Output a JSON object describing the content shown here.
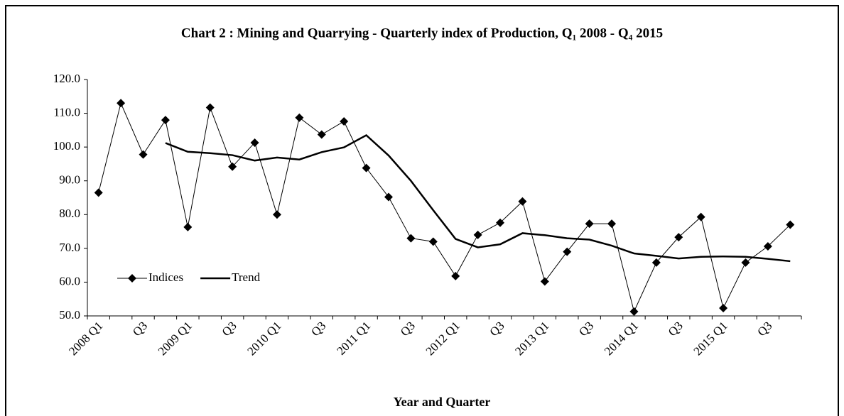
{
  "chart_data": {
    "type": "line",
    "title": "Chart 2 : Mining and Quarrying - Quarterly index of Production, Q₁ 2008 - Q₄ 2015",
    "x_label": "Year and Quarter",
    "categories": [
      "2008 Q1",
      null,
      "Q3",
      null,
      "2009 Q1",
      null,
      "Q3",
      null,
      "2010 Q1",
      null,
      "Q3",
      null,
      "2011 Q1",
      null,
      "Q3",
      null,
      "2012 Q1",
      null,
      "Q3",
      null,
      "2013 Q1",
      null,
      "Q3",
      null,
      "2014 Q1",
      null,
      "Q3",
      null,
      "2015 Q1",
      null,
      "Q3",
      null
    ],
    "series": [
      {
        "name": "Indices",
        "color": "#000000",
        "marker": "diamond",
        "values": [
          86.5,
          113,
          97.8,
          108,
          76.3,
          111.7,
          94.2,
          101.3,
          80,
          108.7,
          103.7,
          107.6,
          93.8,
          85.2,
          73,
          72,
          61.8,
          74,
          77.6,
          83.9,
          60.2,
          69,
          77.3,
          77.3,
          51.3,
          65.8,
          73.3,
          79.3,
          52.3,
          65.8,
          70.6,
          77
        ]
      },
      {
        "name": "Trend",
        "color": "#000000",
        "values": [
          null,
          null,
          null,
          101.2,
          98.6,
          98.2,
          97.6,
          96,
          96.9,
          96.3,
          98.5,
          99.9,
          103.5,
          97.5,
          90,
          81.3,
          72.8,
          70.3,
          71.2,
          74.5,
          73.9,
          73,
          72.6,
          70.8,
          68.5,
          67.8,
          67,
          67.5,
          67.6,
          67.5,
          66.9,
          66.2
        ]
      }
    ],
    "ylim": [
      50,
      120
    ],
    "yticks": [
      {
        "value": 50,
        "label": "50.0"
      },
      {
        "value": 60,
        "label": "60.0"
      },
      {
        "value": 70,
        "label": "70.0"
      },
      {
        "value": 80,
        "label": "80.0"
      },
      {
        "value": 90,
        "label": "90.0"
      },
      {
        "value": 100,
        "label": "100.0"
      },
      {
        "value": 110,
        "label": "110.0"
      },
      {
        "value": 120,
        "label": "120.0"
      }
    ],
    "grid": false,
    "legend": "lower left"
  }
}
